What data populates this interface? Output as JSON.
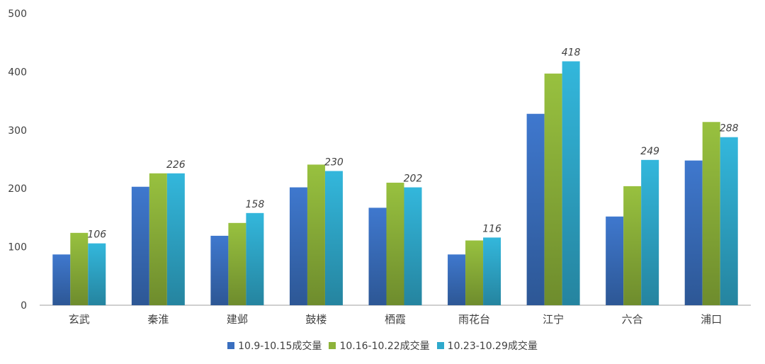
{
  "chart_data": {
    "type": "bar",
    "categories": [
      "玄武",
      "秦淮",
      "建邺",
      "鼓楼",
      "栖霞",
      "雨花台",
      "江宁",
      "六合",
      "浦口"
    ],
    "series": [
      {
        "name": "10.9-10.15成交量",
        "values": [
          87,
          203,
          119,
          202,
          167,
          87,
          328,
          152,
          248
        ],
        "color": "#3a6fbf"
      },
      {
        "name": "10.16-10.22成交量",
        "values": [
          124,
          226,
          141,
          241,
          210,
          111,
          397,
          204,
          314
        ],
        "color": "#8db33a"
      },
      {
        "name": "10.23-10.29成交量",
        "values": [
          106,
          226,
          158,
          230,
          202,
          116,
          418,
          249,
          288
        ],
        "color": "#2fa9cc"
      }
    ],
    "data_labels_series": 2,
    "yticks": [
      0,
      100,
      200,
      300,
      400,
      500
    ],
    "ylim": [
      0,
      500
    ],
    "grid": false,
    "legend_position": "bottom-center",
    "title": "",
    "xlabel": "",
    "ylabel": ""
  }
}
